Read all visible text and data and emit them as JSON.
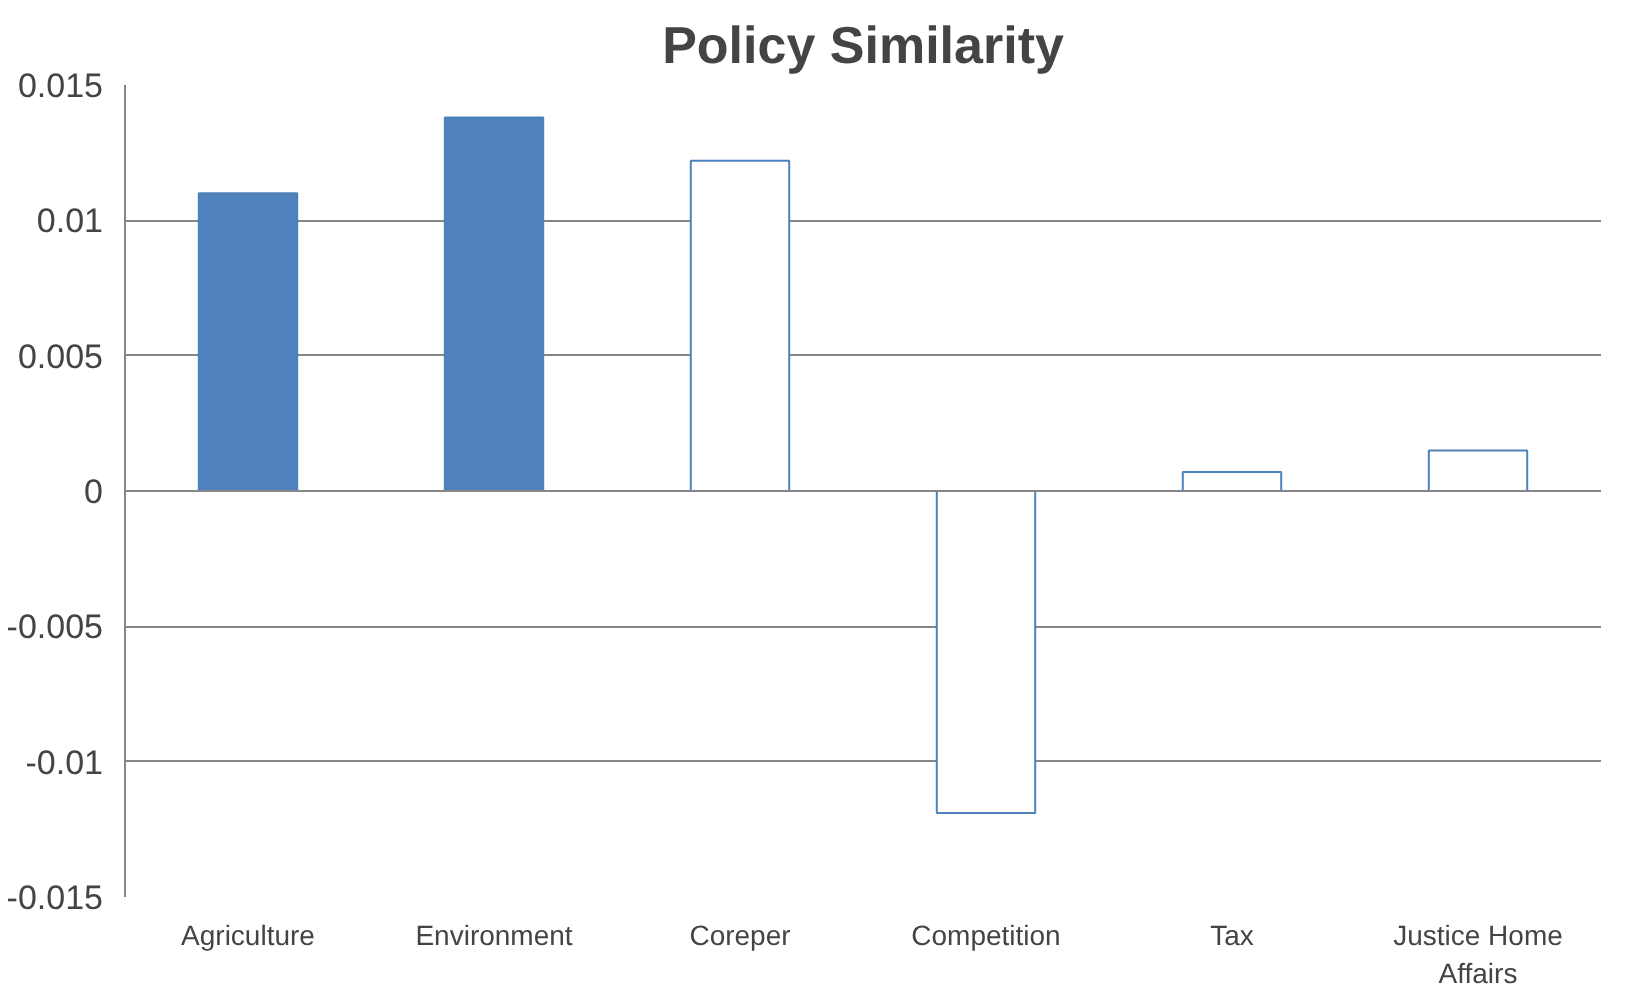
{
  "chart_data": {
    "type": "bar",
    "title": "Policy Similarity",
    "categories": [
      "Agriculture",
      "Environment",
      "Coreper",
      "Competition",
      "Tax",
      "Justice Home Affairs"
    ],
    "values": [
      0.011,
      0.0138,
      0.0122,
      -0.0119,
      0.0007,
      0.0015
    ],
    "colors": [
      "#4f81bd",
      "#4f81bd",
      "#ffffff",
      "#ffffff",
      "#ffffff",
      "#ffffff"
    ],
    "ylim": [
      -0.015,
      0.015
    ],
    "yticks": [
      -0.015,
      -0.01,
      -0.005,
      0,
      0.005,
      0.01,
      0.015
    ],
    "grid": "y"
  }
}
